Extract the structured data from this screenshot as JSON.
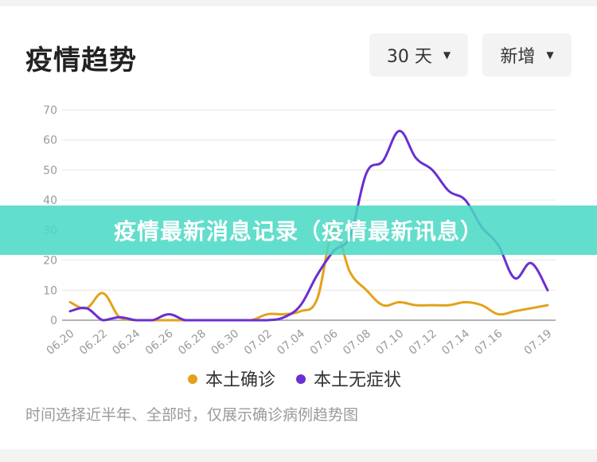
{
  "header": {
    "title": "疫情趋势",
    "range_label": "30 天",
    "metric_label": "新增"
  },
  "banner": {
    "text": "疫情最新消息记录（疫情最新讯息）"
  },
  "footnote": "时间选择近半年、全部时，仅展示确诊病例趋势图",
  "colors": {
    "local_confirmed": "#e3a21a",
    "asymptomatic": "#6b2fd3"
  },
  "chart_data": {
    "type": "line",
    "x": [
      "06.20",
      "06.21",
      "06.22",
      "06.23",
      "06.24",
      "06.25",
      "06.26",
      "06.27",
      "06.28",
      "06.29",
      "06.30",
      "07.01",
      "07.02",
      "07.03",
      "07.04",
      "07.05",
      "07.06",
      "07.07",
      "07.08",
      "07.09",
      "07.10",
      "07.11",
      "07.12",
      "07.13",
      "07.14",
      "07.15",
      "07.16",
      "07.17",
      "07.18",
      "07.19"
    ],
    "x_tick_labels": [
      "06.20",
      "06.22",
      "06.24",
      "06.26",
      "06.28",
      "06.30",
      "07.02",
      "07.04",
      "07.06",
      "07.08",
      "07.10",
      "07.12",
      "07.14",
      "07.16",
      "07.19"
    ],
    "ylim": [
      0,
      70
    ],
    "y_ticks": [
      0,
      10,
      20,
      30,
      40,
      50,
      60,
      70
    ],
    "grid": "horizontal",
    "legend_position": "bottom",
    "series": [
      {
        "name": "本土确诊",
        "values": [
          6,
          4,
          9,
          1,
          0,
          0,
          0,
          0,
          0,
          0,
          0,
          0,
          2,
          2,
          3,
          7,
          30,
          16,
          10,
          5,
          6,
          5,
          5,
          5,
          6,
          5,
          2,
          3,
          4,
          5
        ]
      },
      {
        "name": "本土无症状",
        "values": [
          3,
          4,
          0,
          1,
          0,
          0,
          2,
          0,
          0,
          0,
          0,
          0,
          0,
          1,
          5,
          15,
          23,
          28,
          49,
          53,
          63,
          54,
          50,
          43,
          40,
          31,
          25,
          14,
          19,
          10
        ]
      }
    ]
  }
}
